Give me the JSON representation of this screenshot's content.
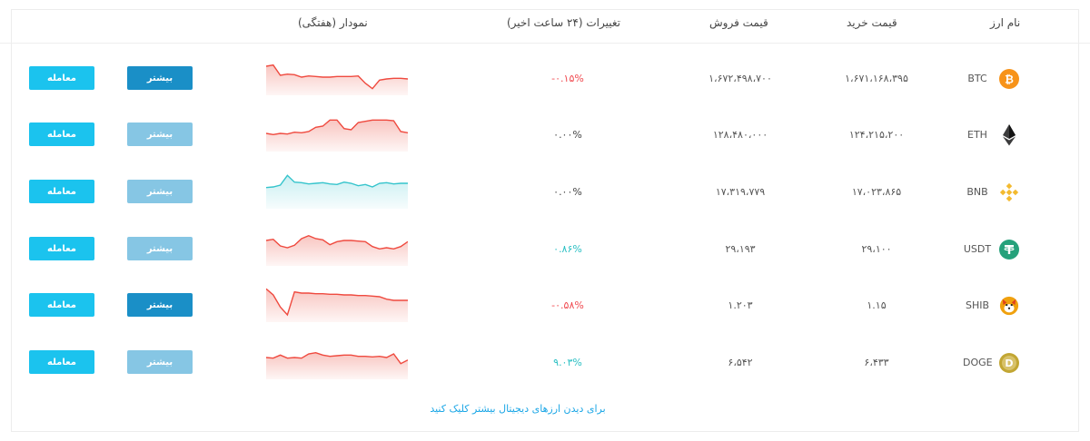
{
  "colors": {
    "negative": "#f0494f",
    "positive": "#2bc0c4",
    "neutral": "#444444",
    "more_active": "#1a8fc7",
    "more_inactive": "#86c6e4",
    "trade": "#1bc3ee",
    "link": "#1aa6e6",
    "spark_red": "#ef4a3f",
    "spark_red_fill": "#f8c2bd",
    "spark_teal": "#35c4cc",
    "spark_teal_fill": "#c6eef1"
  },
  "header": {
    "name": "نام ارز",
    "buy": "قیمت خرید",
    "sell": "قیمت فروش",
    "change": "تغییرات (۲۴ ساعت اخیر)",
    "chart": "نمودار (هفتگی)"
  },
  "rows": [
    {
      "symbol": "BTC",
      "icon": "bitcoin-icon",
      "buy": "۱،۶۷۱،۱۶۸،۳۹۵",
      "sell": "۱،۶۷۲،۴۹۸،۷۰۰",
      "change": "-۰.۱۵%",
      "trend": "negative",
      "spark": [
        48,
        50,
        33,
        35,
        34,
        30,
        32,
        31,
        30,
        30,
        31,
        31,
        31,
        32,
        20,
        11,
        25,
        27,
        28,
        28,
        27
      ],
      "spark_color": "red",
      "more_active": true,
      "more_label": "بیشتر",
      "trade_label": "معامله"
    },
    {
      "symbol": "ETH",
      "icon": "ethereum-icon",
      "buy": "۱۲۴،۲۱۵،۲۰۰",
      "sell": "۱۲۸،۴۸۰،۰۰۰",
      "change": "۰.۰۰%",
      "trend": "neutral",
      "spark": [
        30,
        28,
        30,
        29,
        32,
        31,
        33,
        40,
        42,
        52,
        52,
        38,
        36,
        48,
        50,
        52,
        52,
        52,
        51,
        33,
        31
      ],
      "spark_color": "red",
      "more_active": false,
      "more_label": "بیشتر",
      "trade_label": "معامله"
    },
    {
      "symbol": "BNB",
      "icon": "bnb-icon",
      "buy": "۱۷،۰۲۳،۸۶۵",
      "sell": "۱۷،۳۱۹،۷۷۹",
      "change": "۰.۰۰%",
      "trend": "neutral",
      "spark": [
        35,
        36,
        39,
        55,
        44,
        43,
        41,
        42,
        43,
        41,
        40,
        44,
        42,
        38,
        40,
        36,
        42,
        43,
        41,
        42,
        42
      ],
      "spark_color": "teal",
      "more_active": false,
      "more_label": "بیشتر",
      "trade_label": "معامله"
    },
    {
      "symbol": "USDT",
      "icon": "tether-icon",
      "buy": "۲۹،۱۰۰",
      "sell": "۲۹،۱۹۳",
      "change": "۰.۸۶%",
      "trend": "positive",
      "spark": [
        42,
        44,
        33,
        30,
        34,
        45,
        50,
        45,
        43,
        35,
        40,
        42,
        42,
        41,
        40,
        32,
        28,
        30,
        28,
        32,
        40
      ],
      "spark_color": "red",
      "more_active": false,
      "more_label": "بیشتر",
      "trade_label": "معامله"
    },
    {
      "symbol": "SHIB",
      "icon": "shiba-icon",
      "buy": "۱.۱۵",
      "sell": "۱.۲۰۳",
      "change": "-۰.۵۸%",
      "trend": "negative",
      "spark": [
        55,
        45,
        25,
        12,
        50,
        48,
        48,
        47,
        47,
        46,
        46,
        45,
        45,
        44,
        44,
        43,
        42,
        38,
        36,
        36,
        36
      ],
      "spark_color": "red",
      "more_active": true,
      "more_label": "بیشتر",
      "trade_label": "معامله"
    },
    {
      "symbol": "DOGE",
      "icon": "dogecoin-icon",
      "buy": "۶،۴۳۳",
      "sell": "۶،۵۴۲",
      "change": "۹.۰۳%",
      "trend": "positive",
      "spark": [
        36,
        35,
        40,
        35,
        36,
        35,
        42,
        44,
        40,
        38,
        39,
        40,
        40,
        38,
        38,
        37,
        38,
        36,
        42,
        26,
        32
      ],
      "spark_color": "red",
      "more_active": false,
      "more_label": "بیشتر",
      "trade_label": "معامله"
    }
  ],
  "footer": {
    "link_text": "برای دیدن ارزهای دیجیتال بیشتر کلیک کنید"
  }
}
